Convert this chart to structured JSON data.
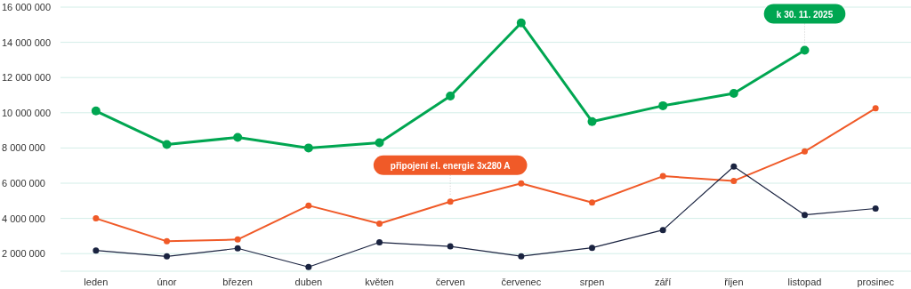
{
  "chart_data": {
    "type": "line",
    "categories": [
      "leden",
      "únor",
      "březen",
      "duben",
      "květen",
      "červen",
      "červenec",
      "srpen",
      "září",
      "říjen",
      "listopad",
      "prosinec"
    ],
    "series": [
      {
        "color": "#00a651",
        "values": [
          10100000,
          8200000,
          8600000,
          8000000,
          8300000,
          10950000,
          15100000,
          9500000,
          10400000,
          11100000,
          13550000,
          null
        ]
      },
      {
        "color": "#f05a28",
        "values": [
          4000000,
          2700000,
          2800000,
          4730000,
          3700000,
          4950000,
          5990000,
          4900000,
          6400000,
          6130000,
          7800000,
          10250000
        ]
      },
      {
        "color": "#1a2340",
        "values": [
          2180000,
          1840000,
          2300000,
          1240000,
          2640000,
          2410000,
          1850000,
          2330000,
          3340000,
          6950000,
          4200000,
          4560000
        ]
      }
    ],
    "ylim": [
      1000000,
      16000000
    ],
    "yticks": [
      {
        "value": 2000000,
        "label": "2 000 000"
      },
      {
        "value": 4000000,
        "label": "4 000 000"
      },
      {
        "value": 6000000,
        "label": "6 000 000"
      },
      {
        "value": 8000000,
        "label": "8 000 000"
      },
      {
        "value": 10000000,
        "label": "10 000 000"
      },
      {
        "value": 12000000,
        "label": "12 000 000"
      },
      {
        "value": 14000000,
        "label": "14 000 000"
      },
      {
        "value": 16000000,
        "label": "16 000 000"
      }
    ],
    "grid": "y",
    "marker": "circle",
    "line_style": "solid",
    "legend": false,
    "annotations": [
      {
        "text": "připojení el. energie 3x280 A",
        "x": "červen",
        "y": 4950000
      },
      {
        "text": "k 30. 11. 2025",
        "x": "listopad",
        "y": 13550000
      }
    ]
  }
}
